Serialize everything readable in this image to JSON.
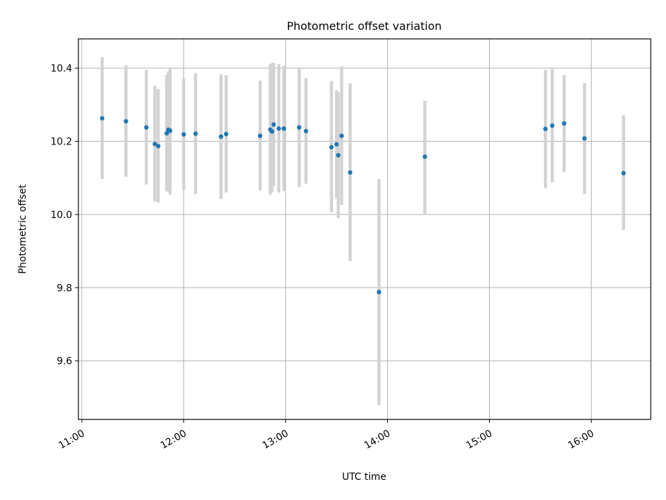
{
  "chart_data": {
    "type": "scatter",
    "title": "Photometric offset variation",
    "xlabel": "UTC time",
    "ylabel": "Photometric offset",
    "xlim": [
      "10:58",
      "16:35"
    ],
    "ylim": [
      9.44,
      10.48
    ],
    "x_ticks": [
      "11:00",
      "12:00",
      "13:00",
      "14:00",
      "15:00",
      "16:00"
    ],
    "y_ticks": [
      9.6,
      9.8,
      10.0,
      10.2,
      10.4
    ],
    "grid": true,
    "colors": {
      "marker": "#1f77b4",
      "errorbar": "#d3d3d3",
      "grid": "#b0b0b0"
    },
    "points": [
      {
        "x": "11:12",
        "y": 10.263,
        "ylow": 10.097,
        "yhigh": 10.43
      },
      {
        "x": "11:26",
        "y": 10.255,
        "ylow": 10.103,
        "yhigh": 10.408
      },
      {
        "x": "11:38",
        "y": 10.238,
        "ylow": 10.082,
        "yhigh": 10.395
      },
      {
        "x": "11:43",
        "y": 10.193,
        "ylow": 10.036,
        "yhigh": 10.352
      },
      {
        "x": "11:45",
        "y": 10.187,
        "ylow": 10.033,
        "yhigh": 10.343
      },
      {
        "x": "11:50",
        "y": 10.222,
        "ylow": 10.063,
        "yhigh": 10.381
      },
      {
        "x": "11:51",
        "y": 10.232,
        "ylow": 10.063,
        "yhigh": 10.391
      },
      {
        "x": "11:52",
        "y": 10.229,
        "ylow": 10.055,
        "yhigh": 10.402
      },
      {
        "x": "12:00",
        "y": 10.219,
        "ylow": 10.068,
        "yhigh": 10.371
      },
      {
        "x": "12:07",
        "y": 10.221,
        "ylow": 10.056,
        "yhigh": 10.386
      },
      {
        "x": "12:22",
        "y": 10.213,
        "ylow": 10.042,
        "yhigh": 10.383
      },
      {
        "x": "12:25",
        "y": 10.22,
        "ylow": 10.06,
        "yhigh": 10.381
      },
      {
        "x": "12:45",
        "y": 10.215,
        "ylow": 10.066,
        "yhigh": 10.366
      },
      {
        "x": "12:51",
        "y": 10.232,
        "ylow": 10.055,
        "yhigh": 10.411
      },
      {
        "x": "12:52",
        "y": 10.227,
        "ylow": 10.061,
        "yhigh": 10.414
      },
      {
        "x": "12:53",
        "y": 10.246,
        "ylow": 10.078,
        "yhigh": 10.415
      },
      {
        "x": "12:56",
        "y": 10.235,
        "ylow": 10.06,
        "yhigh": 10.411
      },
      {
        "x": "12:59",
        "y": 10.235,
        "ylow": 10.064,
        "yhigh": 10.406
      },
      {
        "x": "13:08",
        "y": 10.238,
        "ylow": 10.075,
        "yhigh": 10.402
      },
      {
        "x": "13:12",
        "y": 10.228,
        "ylow": 10.084,
        "yhigh": 10.373
      },
      {
        "x": "13:27",
        "y": 10.184,
        "ylow": 10.006,
        "yhigh": 10.365
      },
      {
        "x": "13:30",
        "y": 10.192,
        "ylow": 10.044,
        "yhigh": 10.34
      },
      {
        "x": "13:31",
        "y": 10.162,
        "ylow": 9.99,
        "yhigh": 10.334
      },
      {
        "x": "13:33",
        "y": 10.215,
        "ylow": 10.026,
        "yhigh": 10.405
      },
      {
        "x": "13:38",
        "y": 10.115,
        "ylow": 9.873,
        "yhigh": 10.358
      },
      {
        "x": "13:55",
        "y": 9.788,
        "ylow": 9.479,
        "yhigh": 10.097
      },
      {
        "x": "14:22",
        "y": 10.158,
        "ylow": 10.0,
        "yhigh": 10.311
      },
      {
        "x": "15:33",
        "y": 10.234,
        "ylow": 10.072,
        "yhigh": 10.395
      },
      {
        "x": "15:37",
        "y": 10.243,
        "ylow": 10.088,
        "yhigh": 10.398
      },
      {
        "x": "15:44",
        "y": 10.249,
        "ylow": 10.116,
        "yhigh": 10.381
      },
      {
        "x": "15:56",
        "y": 10.208,
        "ylow": 10.056,
        "yhigh": 10.359
      },
      {
        "x": "16:19",
        "y": 10.113,
        "ylow": 9.958,
        "yhigh": 10.271
      }
    ]
  }
}
